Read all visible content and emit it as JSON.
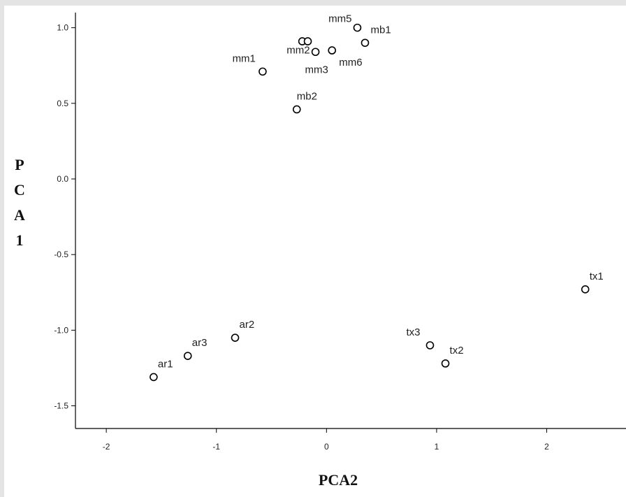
{
  "chart_data": {
    "type": "scatter",
    "title": "",
    "xlabel": "PCA2",
    "ylabel": "PCA1",
    "xlim": [
      -2.28,
      2.72
    ],
    "ylim": [
      -1.65,
      1.1
    ],
    "xticks": [
      -2,
      -1,
      0,
      1,
      2
    ],
    "yticks": [
      1.0,
      0.5,
      0.0,
      -0.5,
      -1.0,
      -1.5
    ],
    "xtick_labels": [
      "-2",
      "-1",
      "0",
      "1",
      "2"
    ],
    "ytick_labels": [
      "1.0",
      "0.5",
      "0.0",
      "-0.5",
      "-1.0",
      "-1.5"
    ],
    "grid": false,
    "marker": "open-circle",
    "points": [
      {
        "label": "mb1",
        "x": 0.35,
        "y": 0.9
      },
      {
        "label": "mm5",
        "x": 0.28,
        "y": 1.0
      },
      {
        "label": "",
        "x": -0.22,
        "y": 0.91
      },
      {
        "label": "",
        "x": -0.17,
        "y": 0.91
      },
      {
        "label": "mm2",
        "x": -0.1,
        "y": 0.84
      },
      {
        "label": "mm6",
        "x": 0.05,
        "y": 0.85
      },
      {
        "label": "mm1",
        "x": -0.58,
        "y": 0.71
      },
      {
        "label": "mb2",
        "x": -0.27,
        "y": 0.46
      },
      {
        "label": "tx1",
        "x": 2.35,
        "y": -0.73
      },
      {
        "label": "ar2",
        "x": -0.83,
        "y": -1.05
      },
      {
        "label": "ar3",
        "x": -1.26,
        "y": -1.17
      },
      {
        "label": "ar1",
        "x": -1.57,
        "y": -1.31
      },
      {
        "label": "tx3",
        "x": 0.94,
        "y": -1.1
      },
      {
        "label": "tx2",
        "x": 1.08,
        "y": -1.22
      }
    ],
    "extra_labels": [
      {
        "label": "mm3",
        "x": -0.09,
        "y": 0.7
      }
    ]
  }
}
